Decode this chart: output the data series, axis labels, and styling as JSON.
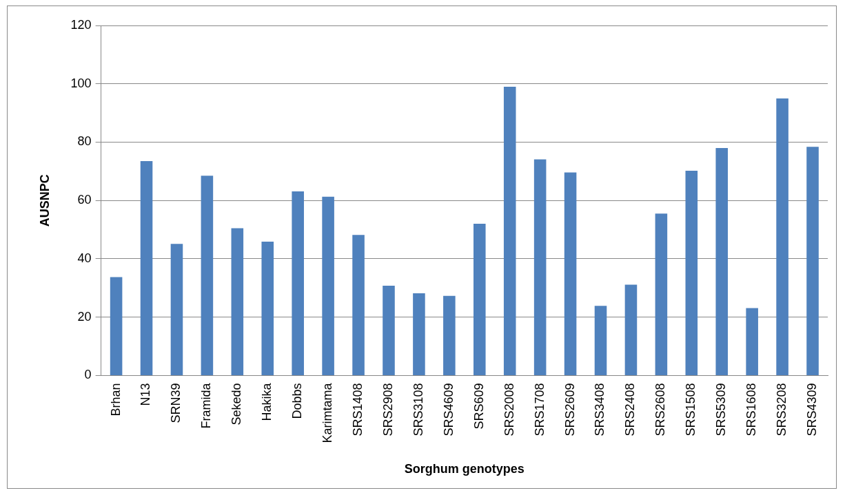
{
  "chart_data": {
    "type": "bar",
    "xlabel": "Sorghum genotypes",
    "ylabel": "AUSNPC",
    "categories": [
      "Brhan",
      "N13",
      "SRN39",
      "Framida",
      "Sekedo",
      "Hakika",
      "Dobbs",
      "Karimtama",
      "SRS1408",
      "SRS2908",
      "SRS3108",
      "SRS4609",
      "SRS609",
      "SRS2008",
      "SRS1708",
      "SRS2609",
      "SRS3408",
      "SRS2408",
      "SRS2608",
      "SRS1508",
      "SRS5309",
      "SRS1608",
      "SRS3208",
      "SRS4309"
    ],
    "values": [
      33.7,
      73.5,
      45.1,
      68.5,
      50.5,
      45.9,
      63.1,
      61.3,
      48.2,
      30.8,
      28.2,
      27.3,
      52.0,
      99.0,
      74.1,
      69.6,
      23.9,
      31.1,
      55.5,
      70.2,
      78.0,
      23.1,
      95.0,
      78.4
    ],
    "color": "#4f81bd",
    "ylim": [
      0,
      120
    ],
    "yticks": [
      0,
      20,
      40,
      60,
      80,
      100,
      120
    ],
    "grid": "y"
  }
}
